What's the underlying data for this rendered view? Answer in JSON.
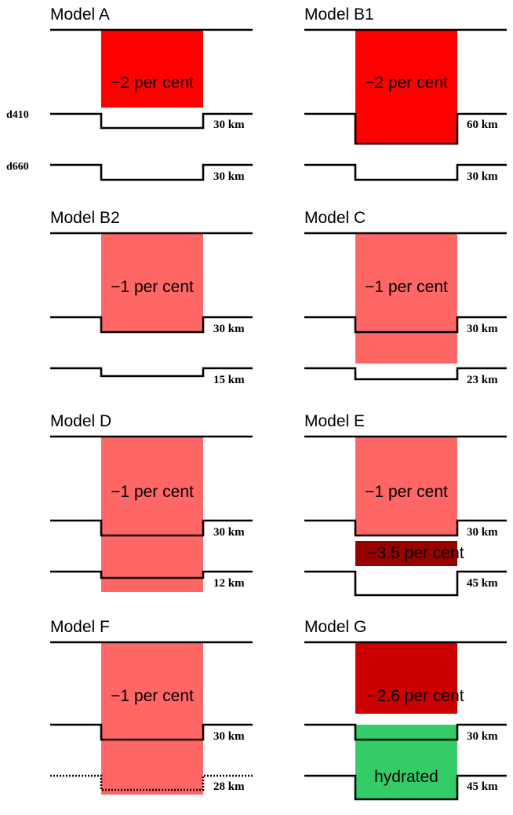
{
  "side_labels": {
    "d410": "d410",
    "d660": "d660"
  },
  "colors": {
    "red": "#ff0000",
    "light_red": "#ff6666",
    "dark_red": "#990000",
    "crimson": "#cc0000",
    "green": "#33cc66"
  },
  "panels": [
    {
      "title": "Model A",
      "anomaly": "−2 per cent",
      "d410_km": "30 km",
      "d660_km": "30 km"
    },
    {
      "title": "Model B1",
      "anomaly": "−2 per cent",
      "d410_km": "60 km",
      "d660_km": "30 km"
    },
    {
      "title": "Model B2",
      "anomaly": "−1 per cent",
      "d410_km": "30 km",
      "d660_km": "15 km"
    },
    {
      "title": "Model C",
      "anomaly": "−1 per cent",
      "d410_km": "30 km",
      "d660_km": "23 km"
    },
    {
      "title": "Model D",
      "anomaly": "−1 per cent",
      "d410_km": "30 km",
      "d660_km": "12 km"
    },
    {
      "title": "Model E",
      "anomaly": "−1 per cent",
      "second_anomaly": "−3.5 per cent",
      "d410_km": "30 km",
      "d660_km": "45 km"
    },
    {
      "title": "Model F",
      "anomaly": "−1 per cent",
      "d410_km": "30 km",
      "d660_km": "28 km"
    },
    {
      "title": "Model G",
      "anomaly": "−2.6 per cent",
      "hydrated_label": "hydrated",
      "d410_km": "30 km",
      "d660_km": "45 km"
    }
  ]
}
